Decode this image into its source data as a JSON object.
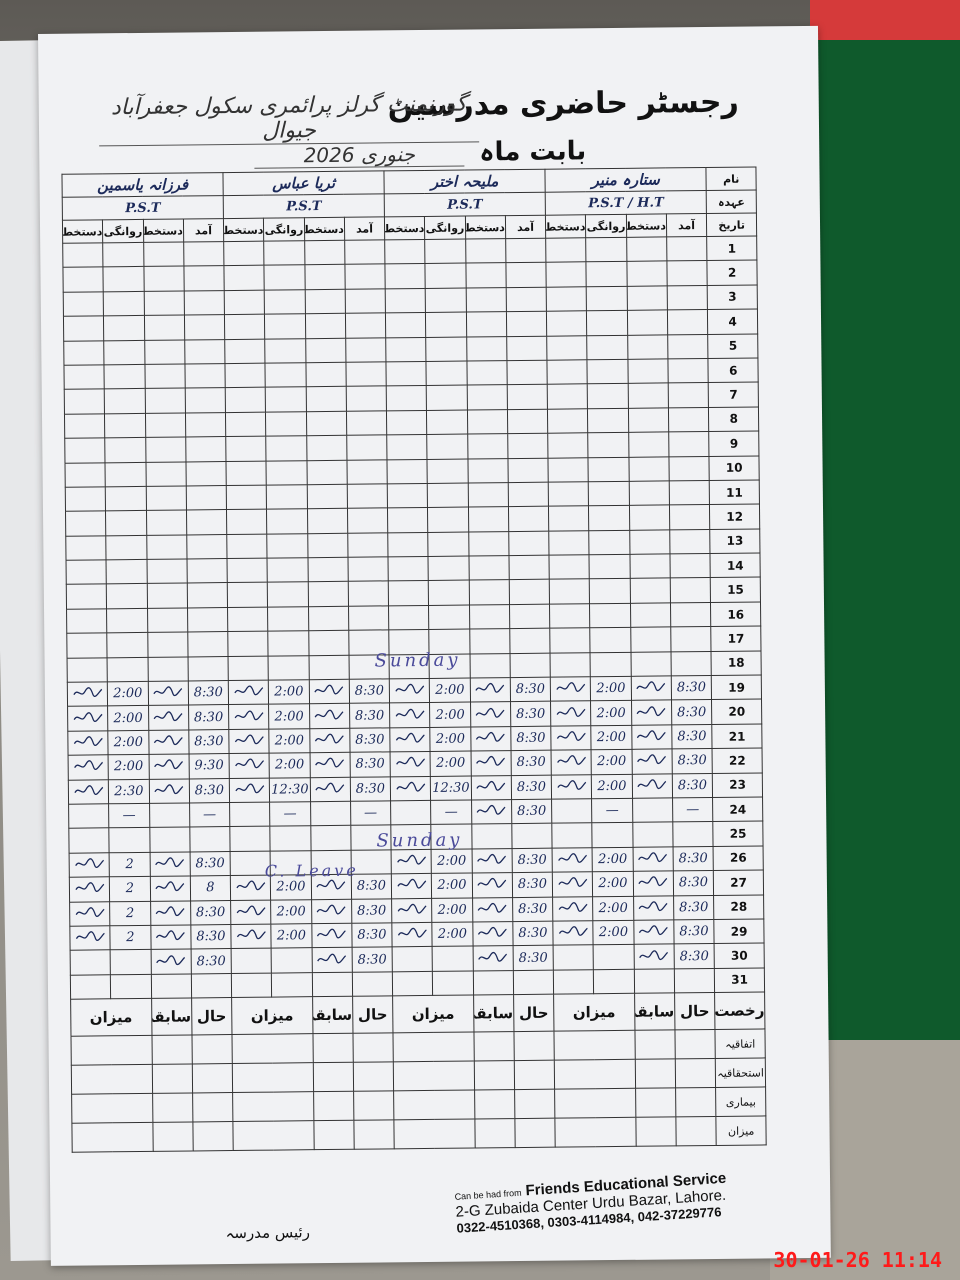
{
  "title": "رجسٹر حاضری مدرسین",
  "school_name": "گورنمنٹ گرلز پرائمری سکول جعفرآباد جیوال",
  "month_label": "بابت ماہ",
  "month_value": "جنوری 2026",
  "header_labels": {
    "name": "نام",
    "designation": "عہدہ",
    "date": "تاریخ"
  },
  "column_labels": {
    "arrival": "آمد",
    "signature": "دستخط",
    "departure": "روانگی"
  },
  "teachers": [
    {
      "name": "ستارہ منیر",
      "designation": "P.S.T / H.T"
    },
    {
      "name": "ملیحہ اختر",
      "designation": "P.S.T"
    },
    {
      "name": "ثریا عباس",
      "designation": "P.S.T"
    },
    {
      "name": "فرزانہ یاسمین",
      "designation": "P.S.T"
    }
  ],
  "days": [
    1,
    2,
    3,
    4,
    5,
    6,
    7,
    8,
    9,
    10,
    11,
    12,
    13,
    14,
    15,
    16,
    17,
    18,
    19,
    20,
    21,
    22,
    23,
    24,
    25,
    26,
    27,
    28,
    29,
    30,
    31
  ],
  "notes": {
    "sunday_1": "Sunday",
    "sunday_2": "Sunday",
    "leave": "C. Leave"
  },
  "attendance": {
    "19": [
      [
        "8:30",
        "2:00"
      ],
      [
        "8:30",
        "2:00"
      ],
      [
        "8:30",
        "2:00"
      ],
      [
        "8:30",
        "2:00"
      ]
    ],
    "20": [
      [
        "8:30",
        "2:00"
      ],
      [
        "8:30",
        "2:00"
      ],
      [
        "8:30",
        "2:00"
      ],
      [
        "8:30",
        "2:00"
      ]
    ],
    "21": [
      [
        "8:30",
        "2:00"
      ],
      [
        "8:30",
        "2:00"
      ],
      [
        "8:30",
        "2:00"
      ],
      [
        "8:30",
        "2:00"
      ]
    ],
    "22": [
      [
        "8:30",
        "2:00"
      ],
      [
        "8:30",
        "2:00"
      ],
      [
        "8:30",
        "2:00"
      ],
      [
        "9:30",
        "2:00"
      ]
    ],
    "23": [
      [
        "8:30",
        "2:00"
      ],
      [
        "8:30",
        "12:30"
      ],
      [
        "8:30",
        "12:30"
      ],
      [
        "8:30",
        "2:30"
      ]
    ],
    "24": [
      [
        "—",
        "—"
      ],
      [
        "8:30",
        "—"
      ],
      [
        "—",
        "—"
      ],
      [
        "—",
        "—"
      ]
    ],
    "26": [
      [
        "8:30",
        "2:00"
      ],
      [
        "8:30",
        "2:00"
      ],
      [
        "",
        ""
      ],
      [
        "8:30",
        "2"
      ]
    ],
    "27": [
      [
        "8:30",
        "2:00"
      ],
      [
        "8:30",
        "2:00"
      ],
      [
        "8:30",
        "2:00"
      ],
      [
        "8",
        "2"
      ]
    ],
    "28": [
      [
        "8:30",
        "2:00"
      ],
      [
        "8:30",
        "2:00"
      ],
      [
        "8:30",
        "2:00"
      ],
      [
        "8:30",
        "2"
      ]
    ],
    "29": [
      [
        "8:30",
        "2:00"
      ],
      [
        "8:30",
        "2:00"
      ],
      [
        "8:30",
        "2:00"
      ],
      [
        "8:30",
        "2"
      ]
    ],
    "30": [
      [
        "8:30",
        ""
      ],
      [
        "8:30",
        ""
      ],
      [
        "8:30",
        ""
      ],
      [
        "8:30",
        ""
      ]
    ]
  },
  "summary": {
    "columns": [
      "حال",
      "سابقہ",
      "میزان"
    ],
    "rows": [
      "رخصت",
      "اتفاقیہ",
      "استحقاقیہ",
      "بیماری",
      "میزان"
    ]
  },
  "footer": {
    "prefix": "Can be had from",
    "publisher": "Friends Educational Service",
    "address": "2-G Zubaida Center Urdu Bazar, Lahore.",
    "phones": "0322-4510368, 0303-4114984, 042-37229776",
    "principal": "رئیس مدرسہ"
  },
  "timestamp": "30-01-26  11:14",
  "colors": {
    "ink": "#1c2a5a",
    "stamp": "#ff1a1a",
    "felt": "#0f5a2c"
  }
}
